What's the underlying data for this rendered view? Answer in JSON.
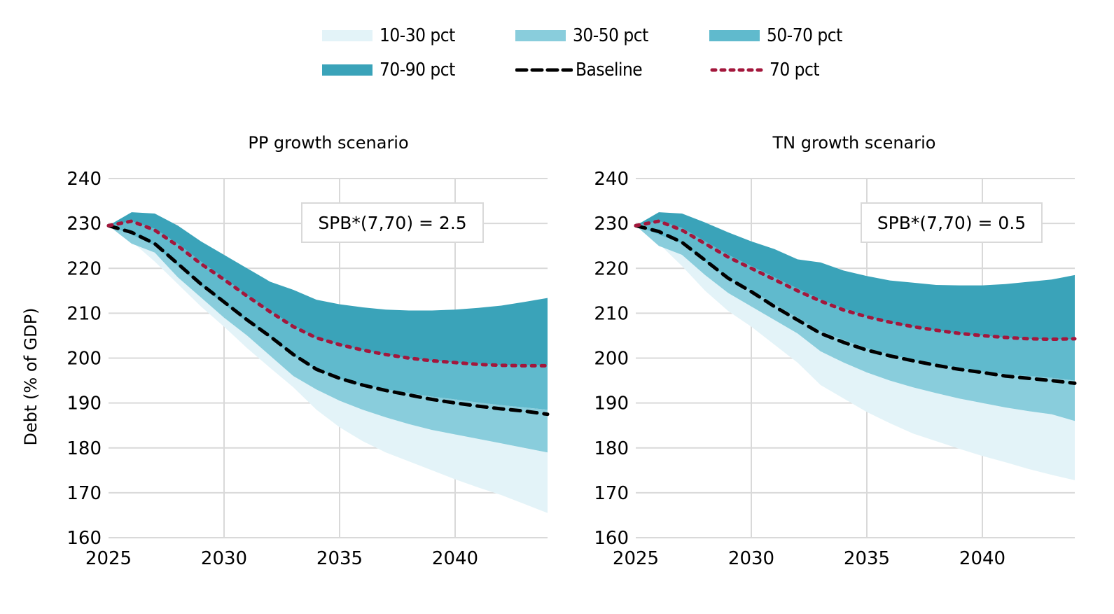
{
  "legend": {
    "items": [
      {
        "label": "10-30 pct",
        "type": "band",
        "color": "#e3f3f8"
      },
      {
        "label": "30-50 pct",
        "type": "band",
        "color": "#89cddc"
      },
      {
        "label": "50-70 pct",
        "type": "band",
        "color": "#60bacd"
      },
      {
        "label": "70-90 pct",
        "type": "band",
        "color": "#3aa3b9"
      },
      {
        "label": "Baseline",
        "type": "dashed",
        "color": "#000000"
      },
      {
        "label": "70 pct",
        "type": "dotted",
        "color": "#a3173c"
      }
    ]
  },
  "chart_data": [
    {
      "type": "area",
      "title": "PP growth scenario",
      "annotation": "SPB*(7,70) = 2.5",
      "xlabel": "",
      "ylabel": "Debt (% of GDP)",
      "ylim": [
        160,
        240
      ],
      "yticks": [
        160,
        170,
        180,
        190,
        200,
        210,
        220,
        230,
        240
      ],
      "xlim": [
        2025,
        2044
      ],
      "xticks": [
        2025,
        2030,
        2035,
        2040
      ],
      "grid": true,
      "x": [
        2025,
        2026,
        2027,
        2028,
        2029,
        2030,
        2031,
        2032,
        2033,
        2034,
        2035,
        2036,
        2037,
        2038,
        2039,
        2040,
        2041,
        2042,
        2043,
        2044
      ],
      "series": [
        {
          "name": "p10",
          "values": [
            229.5,
            226.0,
            221.5,
            216.5,
            211.5,
            207.0,
            202.2,
            197.8,
            193.5,
            188.5,
            184.6,
            181.5,
            179.0,
            177.0,
            175.0,
            173.0,
            171.2,
            169.5,
            167.5,
            165.5
          ]
        },
        {
          "name": "p30",
          "values": [
            229.5,
            225.5,
            223.5,
            218.0,
            213.5,
            209.0,
            205.0,
            200.5,
            196.0,
            193.0,
            190.5,
            188.5,
            186.8,
            185.3,
            184.0,
            183.0,
            182.0,
            181.0,
            180.0,
            179.0
          ]
        },
        {
          "name": "p50",
          "values": [
            229.5,
            227.5,
            225.0,
            220.5,
            216.0,
            212.0,
            208.0,
            204.5,
            200.5,
            197.5,
            195.5,
            194.0,
            193.0,
            192.2,
            191.4,
            190.8,
            190.1,
            189.5,
            189.0,
            188.5
          ]
        },
        {
          "name": "p70",
          "values": [
            229.5,
            230.5,
            228.8,
            225.5,
            221.5,
            217.8,
            214.0,
            210.5,
            207.2,
            204.5,
            203.0,
            201.8,
            200.8,
            200.0,
            199.4,
            199.0,
            198.7,
            198.5,
            198.4,
            198.4
          ]
        },
        {
          "name": "p90",
          "values": [
            229.5,
            232.5,
            232.2,
            229.5,
            226.0,
            223.0,
            220.0,
            217.0,
            215.2,
            213.0,
            212.0,
            211.3,
            210.8,
            210.6,
            210.6,
            210.8,
            211.2,
            211.7,
            212.5,
            213.4
          ]
        },
        {
          "name": "Baseline",
          "values": [
            229.5,
            228.0,
            225.5,
            221.0,
            216.5,
            212.5,
            208.5,
            204.8,
            200.8,
            197.5,
            195.5,
            194.0,
            192.8,
            191.8,
            190.8,
            190.0,
            189.3,
            188.7,
            188.2,
            187.5
          ]
        },
        {
          "name": "70 pct",
          "values": [
            229.5,
            230.5,
            228.5,
            225.0,
            221.0,
            217.5,
            213.8,
            210.3,
            207.0,
            204.5,
            203.0,
            201.8,
            200.8,
            200.0,
            199.4,
            199.0,
            198.6,
            198.4,
            198.3,
            198.3
          ]
        }
      ]
    },
    {
      "type": "area",
      "title": "TN growth scenario",
      "annotation": "SPB*(7,70) = 0.5",
      "xlabel": "",
      "ylabel": "",
      "ylim": [
        160,
        240
      ],
      "yticks": [
        160,
        170,
        180,
        190,
        200,
        210,
        220,
        230,
        240
      ],
      "xlim": [
        2025,
        2044
      ],
      "xticks": [
        2025,
        2030,
        2035,
        2040
      ],
      "grid": true,
      "x": [
        2025,
        2026,
        2027,
        2028,
        2029,
        2030,
        2031,
        2032,
        2033,
        2034,
        2035,
        2036,
        2037,
        2038,
        2039,
        2040,
        2041,
        2042,
        2043,
        2044
      ],
      "series": [
        {
          "name": "p10",
          "values": [
            229.5,
            225.5,
            220.5,
            215.0,
            210.5,
            207.0,
            203.0,
            199.0,
            194.0,
            191.0,
            188.0,
            185.5,
            183.2,
            181.5,
            179.8,
            178.2,
            176.8,
            175.3,
            174.0,
            172.8
          ]
        },
        {
          "name": "p30",
          "values": [
            229.5,
            225.0,
            223.0,
            218.5,
            214.5,
            211.5,
            208.5,
            205.5,
            201.5,
            199.0,
            196.8,
            195.0,
            193.5,
            192.2,
            191.0,
            190.0,
            189.0,
            188.2,
            187.5,
            186.0
          ]
        },
        {
          "name": "p50",
          "values": [
            229.5,
            227.5,
            225.5,
            221.5,
            218.0,
            215.0,
            212.0,
            209.0,
            206.0,
            204.0,
            202.2,
            200.8,
            199.6,
            198.6,
            197.8,
            197.0,
            196.4,
            196.0,
            195.6,
            195.0
          ]
        },
        {
          "name": "p70",
          "values": [
            229.5,
            230.5,
            229.0,
            226.0,
            223.0,
            220.5,
            218.0,
            215.5,
            213.0,
            211.0,
            209.3,
            208.0,
            207.0,
            206.2,
            205.5,
            205.0,
            204.6,
            204.3,
            204.2,
            204.2
          ]
        },
        {
          "name": "p90",
          "values": [
            229.5,
            232.5,
            232.2,
            230.2,
            228.0,
            226.0,
            224.3,
            222.0,
            221.3,
            219.5,
            218.3,
            217.3,
            216.8,
            216.3,
            216.2,
            216.2,
            216.5,
            217.0,
            217.5,
            218.5
          ]
        },
        {
          "name": "Baseline",
          "values": [
            229.5,
            228.2,
            225.8,
            221.8,
            217.8,
            214.8,
            211.5,
            208.5,
            205.5,
            203.5,
            201.8,
            200.5,
            199.4,
            198.4,
            197.5,
            196.8,
            196.0,
            195.5,
            195.0,
            194.4
          ]
        },
        {
          "name": "70 pct",
          "values": [
            229.5,
            230.5,
            228.5,
            225.5,
            222.5,
            220.0,
            217.5,
            215.0,
            212.7,
            210.7,
            209.2,
            208.0,
            207.0,
            206.2,
            205.5,
            205.0,
            204.6,
            204.3,
            204.2,
            204.3
          ]
        }
      ]
    }
  ]
}
